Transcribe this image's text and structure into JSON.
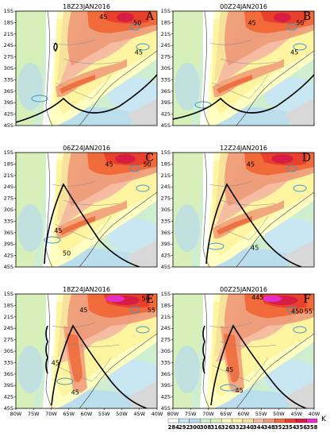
{
  "colors": {
    "c284": "#ffffff",
    "c292": "#c8e6f5",
    "c300": "#b8dcef",
    "c308": "#cfeecf",
    "c316": "#d7efb8",
    "c326": "#ffffc2",
    "c332": "#fff5a0",
    "c338": "#f7e29c",
    "c344": "#f4b8a3",
    "c348": "#ee9a78",
    "c352": "#f06a3a",
    "c354": "#e8402b",
    "c356": "#d81d45",
    "c358": "#e430c8",
    "contour": "#000000",
    "cape": "#3a9ad4",
    "land_gray": "#d8d8d8"
  },
  "panels": [
    {
      "title": "18Z23JAN2016",
      "letter": "A",
      "labels": [
        "50",
        "45",
        "45"
      ]
    },
    {
      "title": "00Z24JAN2016",
      "letter": "B",
      "labels": [
        "45",
        "50",
        "45"
      ]
    },
    {
      "title": "06Z24JAN2016",
      "letter": "C",
      "labels": [
        "45",
        "50",
        "45",
        "50"
      ]
    },
    {
      "title": "12Z24JAN2016",
      "letter": "D",
      "labels": [
        "45",
        "45"
      ]
    },
    {
      "title": "18Z24JAN2016",
      "letter": "E",
      "labels": [
        "45",
        "50",
        "55",
        "45",
        "45"
      ]
    },
    {
      "title": "00Z25JAN2016",
      "letter": "F",
      "labels": [
        "445",
        "450",
        "55",
        "45",
        "45"
      ]
    }
  ],
  "y_ticks": [
    "15S",
    "18S",
    "21S",
    "24S",
    "27S",
    "30S",
    "33S",
    "36S",
    "39S",
    "42S",
    "45S"
  ],
  "x_ticks": [
    "80W",
    "75W",
    "70W",
    "65W",
    "60W",
    "55W",
    "50W",
    "45W",
    "40W"
  ],
  "colorbar": {
    "labels": [
      "284",
      "292",
      "300",
      "308",
      "316",
      "326",
      "332",
      "340",
      "344",
      "348",
      "352",
      "354",
      "356",
      "358"
    ],
    "unit": "K"
  }
}
